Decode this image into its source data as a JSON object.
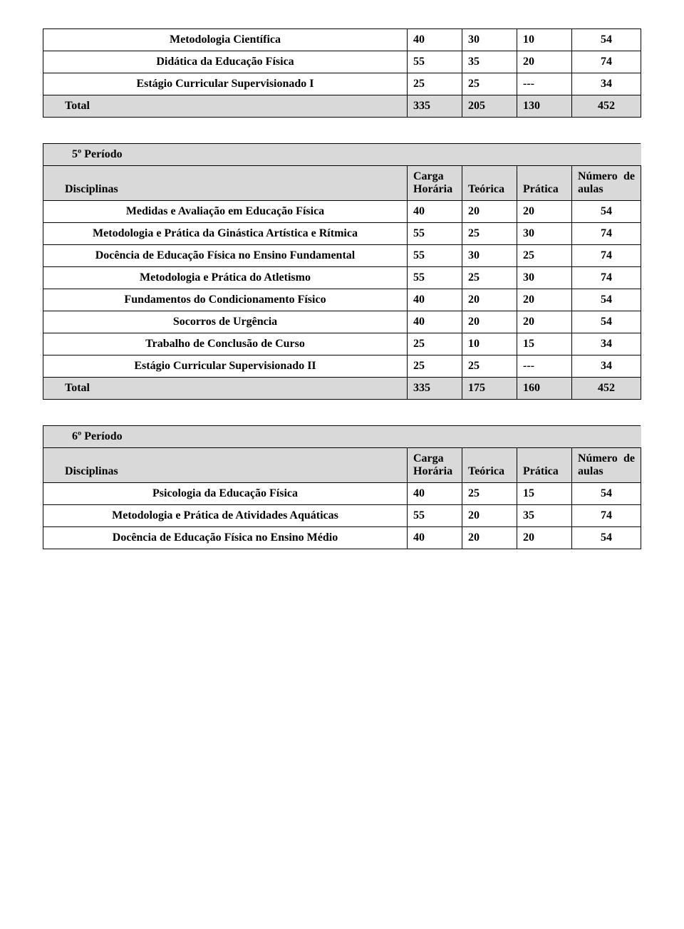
{
  "colors": {
    "header_bg": "#d9d9d9",
    "border": "#000000",
    "bg": "#ffffff",
    "text": "#000000"
  },
  "typography": {
    "font_family": "Times New Roman",
    "body_fontsize_pt": 12,
    "all_bold": true
  },
  "col_widths_pct": [
    50,
    12,
    12,
    12,
    14
  ],
  "table1": {
    "rows": [
      {
        "name": "Metodologia Científica",
        "c1": "40",
        "c2": "30",
        "c3": "10",
        "c4": "54",
        "align": "center"
      },
      {
        "name": "Didática da Educação Física",
        "c1": "55",
        "c2": "35",
        "c3": "20",
        "c4": "74",
        "align": "center"
      },
      {
        "name": "Estágio Curricular Supervisionado I",
        "c1": "25",
        "c2": "25",
        "c3": "---",
        "c4": "34",
        "align": "center"
      },
      {
        "name": "Total",
        "c1": "335",
        "c2": "205",
        "c3": "130",
        "c4": "452",
        "align": "left",
        "is_total": true
      }
    ]
  },
  "table2": {
    "period": "5º Período",
    "header": {
      "disc": "Disciplinas",
      "ch1": "Carga",
      "ch2": "Horária",
      "teo": "Teórica",
      "pra": "Prática",
      "num1": "Número",
      "num2": "de",
      "aulas": "aulas"
    },
    "rows": [
      {
        "name": "Medidas e Avaliação em Educação Física",
        "c1": "40",
        "c2": "20",
        "c3": "20",
        "c4": "54",
        "c4align": "center"
      },
      {
        "name": "Metodologia e Prática da Ginástica Artística e Rítmica",
        "c1": "55",
        "c2": "25",
        "c3": "30",
        "c4": "74",
        "c4align": "center"
      },
      {
        "name": "Docência de Educação Física no Ensino Fundamental",
        "c1": "55",
        "c2": "30",
        "c3": "25",
        "c4": "74",
        "c4align": "center"
      },
      {
        "name": "Metodologia e Prática do Atletismo",
        "c1": "55",
        "c2": "25",
        "c3": "30",
        "c4": "74",
        "c4align": "center"
      },
      {
        "name": "Fundamentos do Condicionamento Físico",
        "c1": "40",
        "c2": "20",
        "c3": "20",
        "c4": "54",
        "c4align": "center"
      },
      {
        "name": "Socorros de Urgência",
        "c1": "40",
        "c2": "20",
        "c3": "20",
        "c4": "54",
        "c4align": "center"
      },
      {
        "name": "Trabalho de Conclusão de Curso",
        "c1": "25",
        "c2": "10",
        "c3": "15",
        "c4": "34",
        "c4align": "center"
      },
      {
        "name": "Estágio Curricular Supervisionado II",
        "c1": "25",
        "c2": "25",
        "c3": "---",
        "c4": "34",
        "c4align": "center"
      },
      {
        "name": "Total",
        "c1": "335",
        "c2": "175",
        "c3": "160",
        "c4": "452",
        "is_total": true,
        "c4align": "center",
        "bg": "#d9d9d9"
      }
    ]
  },
  "table3": {
    "period": "6º Período",
    "header": {
      "disc": "Disciplinas",
      "ch1": "Carga",
      "ch2": "Horária",
      "teo": "Teórica",
      "pra": "Prática",
      "num1": "Número",
      "num2": "de",
      "aulas": "aulas"
    },
    "rows": [
      {
        "name": "Psicologia da Educação Física",
        "c1": "40",
        "c2": "25",
        "c3": "15",
        "c4": "54"
      },
      {
        "name": "Metodologia e Prática de Atividades Aquáticas",
        "c1": "55",
        "c2": "20",
        "c3": "35",
        "c4": "74"
      },
      {
        "name": "Docência de Educação Física no Ensino Médio",
        "c1": "40",
        "c2": "20",
        "c3": "20",
        "c4": "54"
      }
    ]
  }
}
